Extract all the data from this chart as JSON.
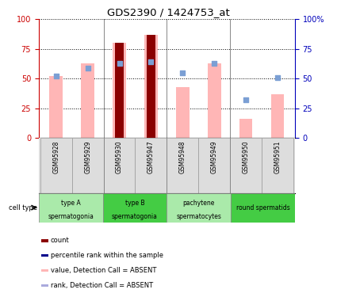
{
  "title": "GDS2390 / 1424753_at",
  "samples": [
    "GSM95928",
    "GSM95929",
    "GSM95930",
    "GSM95947",
    "GSM95948",
    "GSM95949",
    "GSM95950",
    "GSM95951"
  ],
  "pink_bars": [
    52,
    63,
    80,
    87,
    43,
    63,
    16,
    37
  ],
  "dark_red_bars": [
    0,
    0,
    80,
    87,
    0,
    0,
    0,
    0
  ],
  "blue_squares": [
    52,
    59,
    63,
    64,
    55,
    63,
    32,
    51
  ],
  "pink_bar_color": "#FFB6B6",
  "dark_red_color": "#8B0000",
  "blue_square_color": "#7B9FD4",
  "cell_groups": [
    {
      "label": "type A\nspermatogonia",
      "start": 0,
      "end": 2,
      "color": "#AAEAAA"
    },
    {
      "label": "type B\nspermatogonia",
      "start": 2,
      "end": 4,
      "color": "#44CC44"
    },
    {
      "label": "pachytene\nspermatocytes",
      "start": 4,
      "end": 6,
      "color": "#AAEAAA"
    },
    {
      "label": "round spermatids",
      "start": 6,
      "end": 8,
      "color": "#44CC44"
    }
  ],
  "ylim": [
    0,
    100
  ],
  "yticks": [
    0,
    25,
    50,
    75,
    100
  ],
  "left_axis_color": "#CC0000",
  "right_axis_color": "#0000BB",
  "legend_colors": [
    "#8B0000",
    "#00008B",
    "#FFB6B6",
    "#AAAADD"
  ],
  "legend_labels": [
    "count",
    "percentile rank within the sample",
    "value, Detection Call = ABSENT",
    "rank, Detection Call = ABSENT"
  ],
  "xtick_bg": "#DDDDDD",
  "group_dividers": [
    1.5,
    3.5,
    5.5
  ]
}
